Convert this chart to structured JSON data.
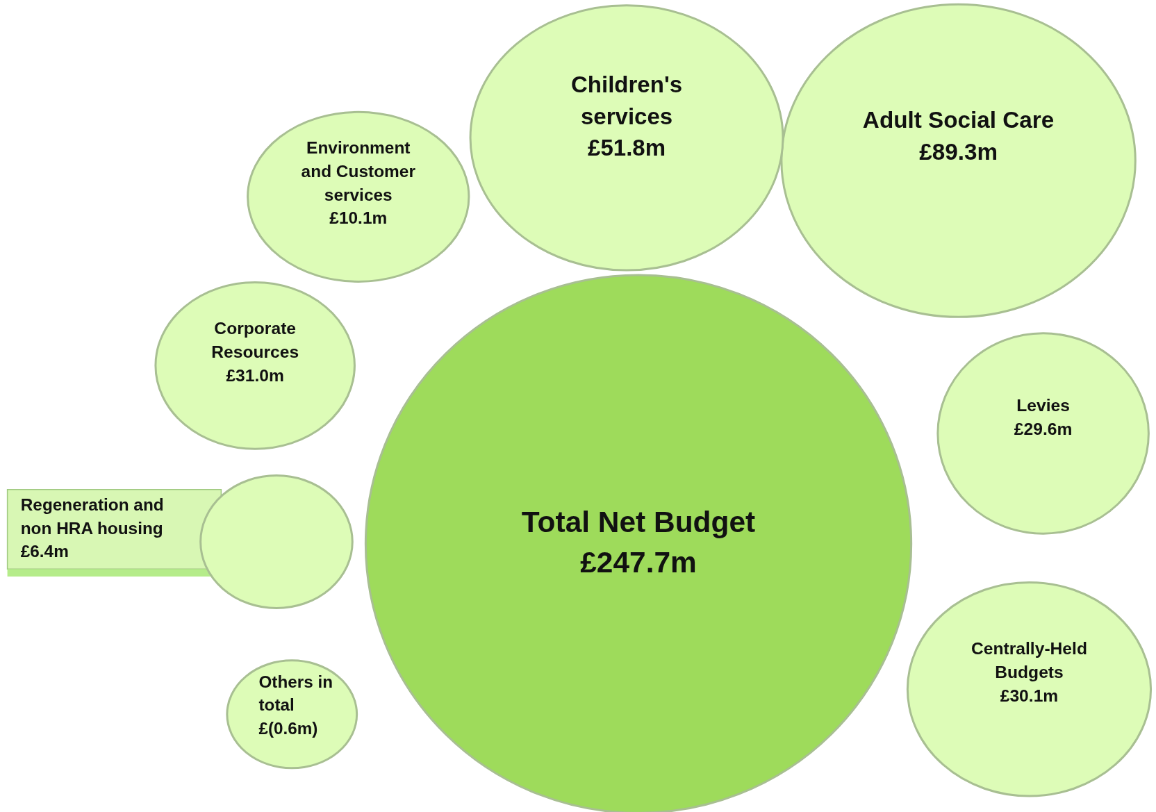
{
  "chart_data": {
    "type": "other",
    "categories": [
      "Total Net Budget",
      "Adult Social Care",
      "Children's services",
      "Environment and Customer services",
      "Corporate Resources",
      "Regeneration and non HRA housing",
      "Others in total",
      "Levies",
      "Centrally-Held Budgets"
    ],
    "values": [
      247.7,
      89.3,
      51.8,
      10.1,
      31.0,
      6.4,
      -0.6,
      29.6,
      30.1
    ],
    "value_labels": [
      "£247.7m",
      "£89.3m",
      "£51.8m",
      "£10.1m",
      "£31.0m",
      "£6.4m",
      "£(0.6m)",
      "£29.6m",
      "£30.1m"
    ],
    "colors": [
      "#9edb5b",
      "#ddfcb7",
      "#ddfcb7",
      "#ddfcb7",
      "#ddfcb7",
      "#ddfcb7",
      "#ddfcb7",
      "#ddfcb7",
      "#ddfcb7"
    ]
  }
}
